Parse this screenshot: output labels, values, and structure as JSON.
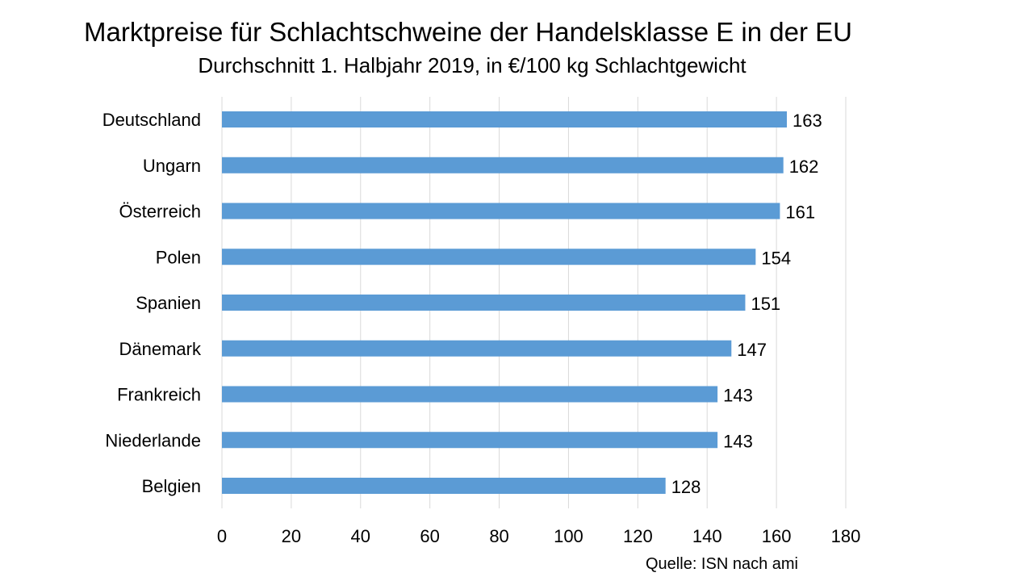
{
  "chart_data": {
    "type": "bar",
    "orientation": "horizontal",
    "title": "Marktpreise für Schlachtschweine der Handelsklasse  E in der EU",
    "subtitle": "Durchschnitt 1. Halbjahr 2019, in €/100 kg Schlachtgewicht",
    "categories": [
      "Deutschland",
      "Ungarn",
      "Österreich",
      "Polen",
      "Spanien",
      "Dänemark",
      "Frankreich",
      "Niederlande",
      "Belgien"
    ],
    "values": [
      163,
      162,
      161,
      154,
      151,
      147,
      143,
      143,
      128
    ],
    "data_labels": [
      "163",
      "162",
      "161",
      "154",
      "151",
      "147",
      "143",
      "143",
      "128"
    ],
    "xlim": [
      0,
      180
    ],
    "xticks": [
      0,
      20,
      40,
      60,
      80,
      100,
      120,
      140,
      160,
      180
    ],
    "xtick_labels": [
      "0",
      "20",
      "40",
      "60",
      "80",
      "100",
      "120",
      "140",
      "160",
      "180"
    ],
    "grid": "vertical",
    "bar_color": "#5B9BD5",
    "grid_color": "#D9D9D9",
    "source": "Quelle: ISN nach ami"
  }
}
